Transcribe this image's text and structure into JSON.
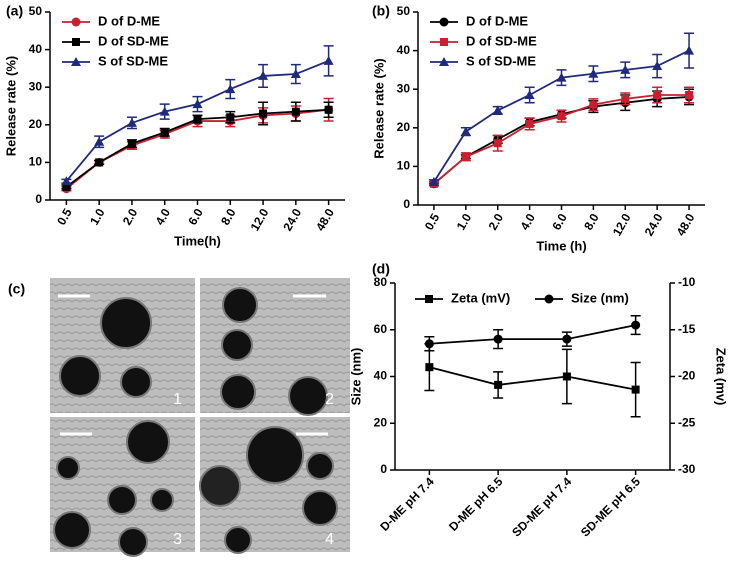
{
  "chart_data": [
    {
      "type": "line",
      "label": "(a)",
      "x_label": "Time(h)",
      "y_label": "Release rate (%)",
      "categories": [
        "0.5",
        "1.0",
        "2.0",
        "4.0",
        "6.0",
        "8.0",
        "12.0",
        "24.0",
        "48.0"
      ],
      "ylim": [
        0,
        50
      ],
      "yticks": [
        0,
        10,
        20,
        30,
        40,
        50
      ],
      "legend": "upper left",
      "series": [
        {
          "name": "D of D-ME",
          "color": "#c8202f",
          "marker": "circle",
          "values": [
            3,
            10,
            14.5,
            17.5,
            21,
            21,
            22.5,
            23,
            24
          ],
          "errors": [
            0.5,
            0.5,
            1,
            1,
            1.5,
            1.5,
            2,
            2,
            3
          ]
        },
        {
          "name": "D of SD-ME",
          "color": "#000000",
          "marker": "square",
          "values": [
            3.5,
            10,
            15,
            18,
            21.5,
            22,
            23,
            23.5,
            24
          ],
          "errors": [
            0.5,
            0.5,
            1,
            1,
            1,
            1.5,
            3,
            2.5,
            2
          ]
        },
        {
          "name": "S of SD-ME",
          "color": "#1f2a7a",
          "marker": "triangle",
          "values": [
            5,
            15.5,
            20.5,
            23.5,
            25.5,
            29.5,
            33,
            33.5,
            37
          ],
          "errors": [
            0.5,
            1.5,
            1.5,
            2,
            2,
            2.5,
            3,
            2.5,
            4
          ]
        }
      ]
    },
    {
      "type": "line",
      "label": "(b)",
      "x_label": "Time (h)",
      "y_label": "Release rate (%)",
      "categories": [
        "0.5",
        "1.0",
        "2.0",
        "4.0",
        "6.0",
        "8.0",
        "12.0",
        "24.0",
        "48.0"
      ],
      "ylim": [
        0,
        50
      ],
      "yticks": [
        0,
        10,
        20,
        30,
        40,
        50
      ],
      "legend": "upper left",
      "series": [
        {
          "name": "D of D-ME",
          "color": "#000000",
          "marker": "circle",
          "values": [
            5.5,
            12.5,
            17,
            21.5,
            23.5,
            25.5,
            26.5,
            27.5,
            28
          ],
          "errors": [
            0.5,
            0.5,
            1,
            1,
            1,
            1.5,
            2,
            2,
            2
          ]
        },
        {
          "name": "D of SD-ME",
          "color": "#c8202f",
          "marker": "square",
          "values": [
            5.5,
            12.5,
            16,
            21,
            23,
            26,
            27.5,
            28.5,
            28.5
          ],
          "errors": [
            0.5,
            1,
            2,
            1.5,
            1.5,
            1.5,
            1.5,
            2,
            2
          ]
        },
        {
          "name": "S of SD-ME",
          "color": "#1f2a7a",
          "marker": "triangle",
          "values": [
            6,
            19,
            24.5,
            28.5,
            33,
            34,
            35,
            36,
            40
          ],
          "errors": [
            0.5,
            1,
            1,
            2,
            2,
            2,
            2,
            3,
            4.5
          ]
        }
      ]
    },
    {
      "type": "line",
      "label": "(d)",
      "y_label": "Size (nm)",
      "y2_label": "Zeta (mv)",
      "categories": [
        "D-ME pH 7.4",
        "D-ME pH 6.5",
        "SD-ME pH 7.4",
        "SD-ME pH 6.5"
      ],
      "ylim": [
        0,
        80
      ],
      "yticks": [
        0,
        20,
        40,
        60,
        80
      ],
      "y2lim": [
        -30,
        -10
      ],
      "y2ticks": [
        -30,
        -25,
        -20,
        -15,
        -10
      ],
      "legend": "upper center",
      "series": [
        {
          "name": "Zeta (mV)",
          "color": "#000000",
          "marker": "square",
          "axis": "y2",
          "values": [
            -19,
            -20.9,
            -20,
            -21.4
          ],
          "errors": [
            2.5,
            1.4,
            2.9,
            2.9
          ]
        },
        {
          "name": "Size (nm)",
          "color": "#000000",
          "marker": "circle",
          "values": [
            54,
            56,
            56,
            62
          ],
          "errors": [
            3,
            4,
            3,
            4
          ]
        }
      ]
    }
  ],
  "images": {
    "label": "(c)",
    "panels": [
      "1",
      "2",
      "3",
      "4"
    ]
  }
}
